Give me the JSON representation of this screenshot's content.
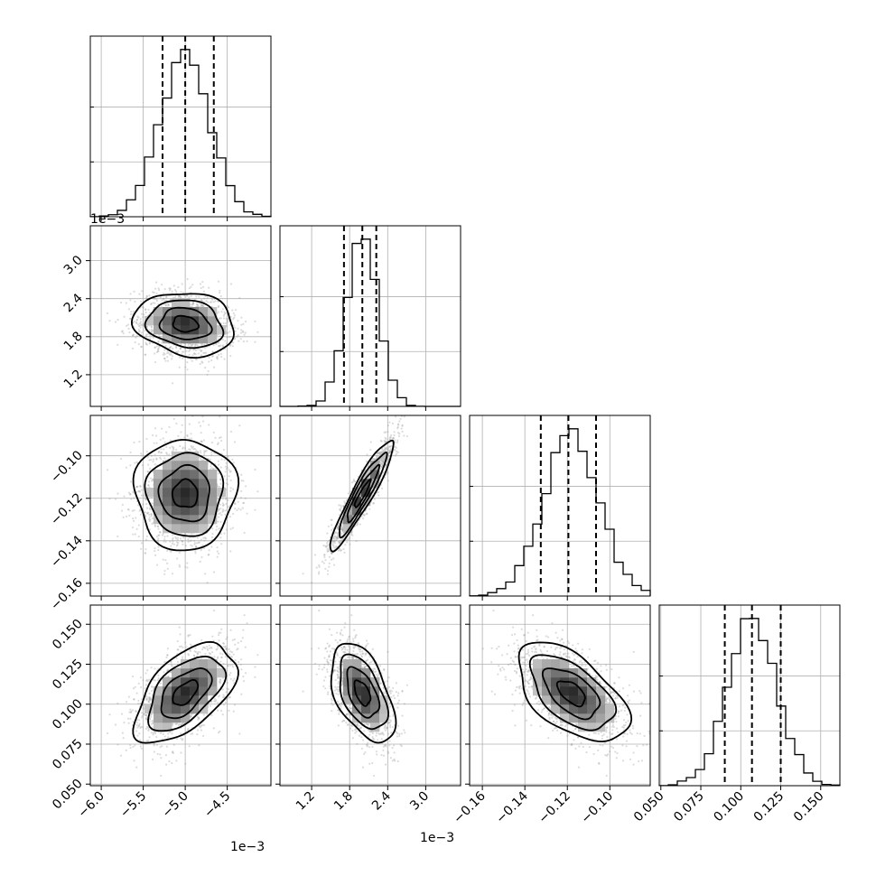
{
  "chart_data": {
    "type": "corner",
    "grid": true,
    "parameters": [
      {
        "index": 0,
        "mean": -0.005,
        "sd": 0.0003,
        "range": [
          -0.00613,
          -0.00398
        ],
        "quantiles": [
          -0.00527,
          -0.005,
          -0.00466
        ],
        "ticks": [
          -0.006,
          -0.0055,
          -0.005,
          -0.0045
        ],
        "tick_labels": [
          "-6.0",
          "-5.5",
          "-5.0",
          "-4.5"
        ],
        "offset_label": "1e−3"
      },
      {
        "index": 1,
        "mean": 0.002,
        "sd": 0.00025,
        "range": [
          0.0007,
          0.00355
        ],
        "quantiles": [
          0.00171,
          0.002,
          0.00222
        ],
        "ticks": [
          0.0012,
          0.0018,
          0.0024,
          0.003
        ],
        "tick_labels": [
          "1.2",
          "1.8",
          "2.4",
          "3.0"
        ],
        "offset_label": "1e−3"
      },
      {
        "index": 2,
        "mean": -0.118,
        "sd": 0.013,
        "range": [
          -0.166,
          -0.081
        ],
        "quantiles": [
          -0.1325,
          -0.1195,
          -0.1065
        ],
        "ticks": [
          -0.16,
          -0.14,
          -0.12,
          -0.1
        ],
        "tick_labels": [
          "-0.16",
          "-0.14",
          "-0.12",
          "-0.10"
        ],
        "offset_label": ""
      },
      {
        "index": 3,
        "mean": 0.107,
        "sd": 0.0155,
        "range": [
          0.049,
          0.162
        ],
        "quantiles": [
          0.09,
          0.107,
          0.125
        ],
        "ticks": [
          0.05,
          0.075,
          0.1,
          0.125,
          0.15
        ],
        "tick_labels": [
          "0.050",
          "0.075",
          "0.100",
          "0.125",
          "0.150"
        ],
        "offset_label": ""
      }
    ],
    "correlations": {
      "1-0": -0.15,
      "2-0": 0.0,
      "2-1": 0.93,
      "3-0": 0.55,
      "3-1": -0.5,
      "3-2": -0.55
    },
    "histogram_bins": 20,
    "scatter_points": 1500,
    "contour_levels_sigma": [
      0.5,
      1.0,
      1.5,
      2.0
    ]
  }
}
